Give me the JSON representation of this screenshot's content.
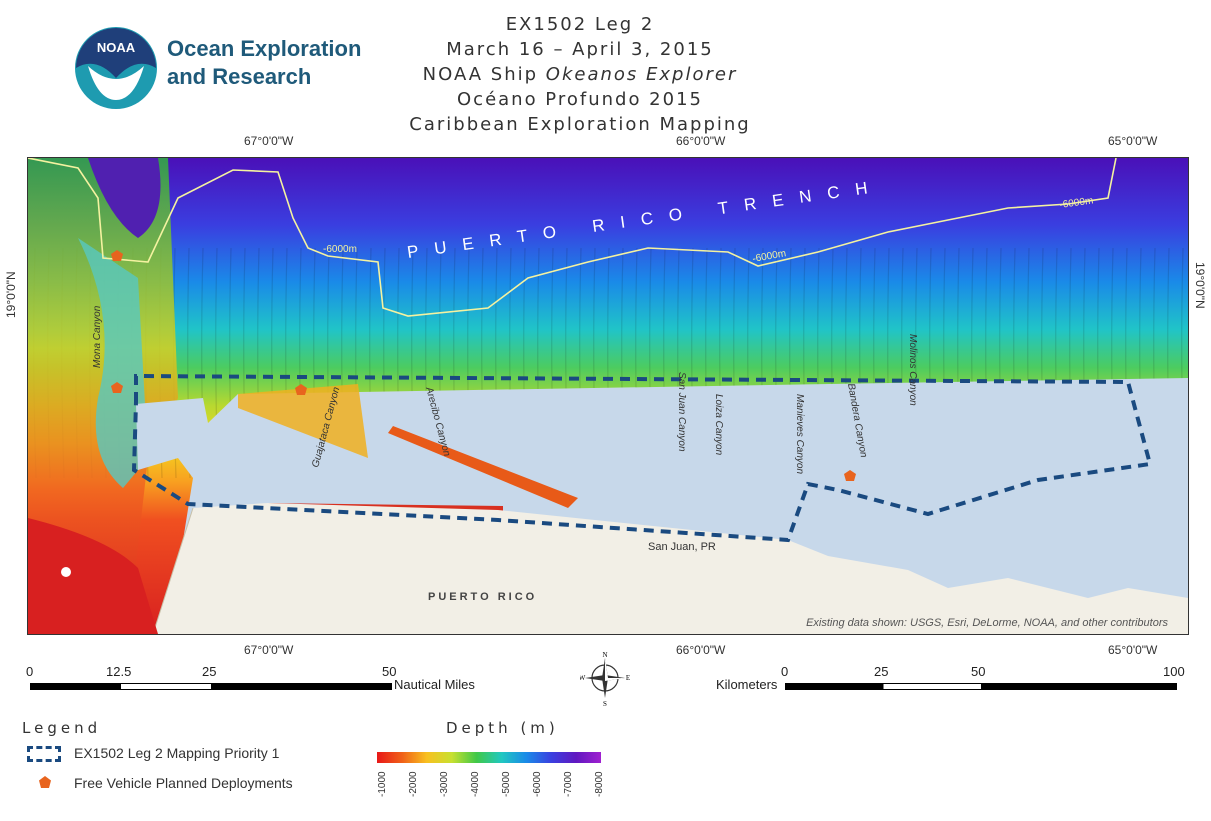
{
  "org": {
    "logo_text": "NOAA",
    "line1": "Ocean Exploration",
    "line2": "and Research"
  },
  "title": {
    "line1": "EX1502  Leg  2",
    "line2": "March 16 – April 3, 2015",
    "line3_pre": "NOAA Ship ",
    "line3_ship": "Okeanos Explorer",
    "line4": "Océano Profundo 2015",
    "line5": "Caribbean Exploration Mapping"
  },
  "map": {
    "lon_labels": [
      "67°0'0\"W",
      "66°0'0\"W",
      "65°0'0\"W"
    ],
    "lat_label": "19°0'0\"N",
    "trench_label": "PUERTO RICO TRENCH",
    "contour_label": "-6000m",
    "island_label": "PUERTO RICO",
    "city_label": "San Juan, PR",
    "canyons": [
      "Mona Canyon",
      "Guajataca Canyon",
      "Arecibo Canyon",
      "San Juan Canyon",
      "Loiza Canyon",
      "Manieves Canyon",
      "Bandera Canyon",
      "Molinos Canyon"
    ],
    "attribution": "Existing data shown:  USGS, Esri, DeLorme,  NOAA, and other contributors",
    "colors": {
      "deep": "#5a18c8",
      "mid": "#1aa0e0",
      "shallow": "#f0e020",
      "survey_box": "#1a4a80",
      "deployment": "#e8641e",
      "land": "#f2efe6",
      "sea_overlay": "#c7d8ea",
      "contour": "#f4f2a0"
    }
  },
  "scalebar": {
    "nautical_ticks": [
      "0",
      "12.5",
      "25",
      "50"
    ],
    "nautical_unit": "Nautical Miles",
    "km_unit": "Kilometers",
    "km_ticks": [
      "0",
      "25",
      "50",
      "100"
    ]
  },
  "compass": {
    "n": "N",
    "s": "S",
    "e": "E",
    "w": "W"
  },
  "legend": {
    "title": "Legend",
    "item1": "EX1502 Leg 2 Mapping Priority 1",
    "item2": "Free Vehicle Planned Deployments",
    "depth_title": "Depth (m)",
    "depth_ticks": [
      "-1000",
      "-2000",
      "-3000",
      "-4000",
      "-5000",
      "-6000",
      "-7000",
      "-8000"
    ]
  }
}
